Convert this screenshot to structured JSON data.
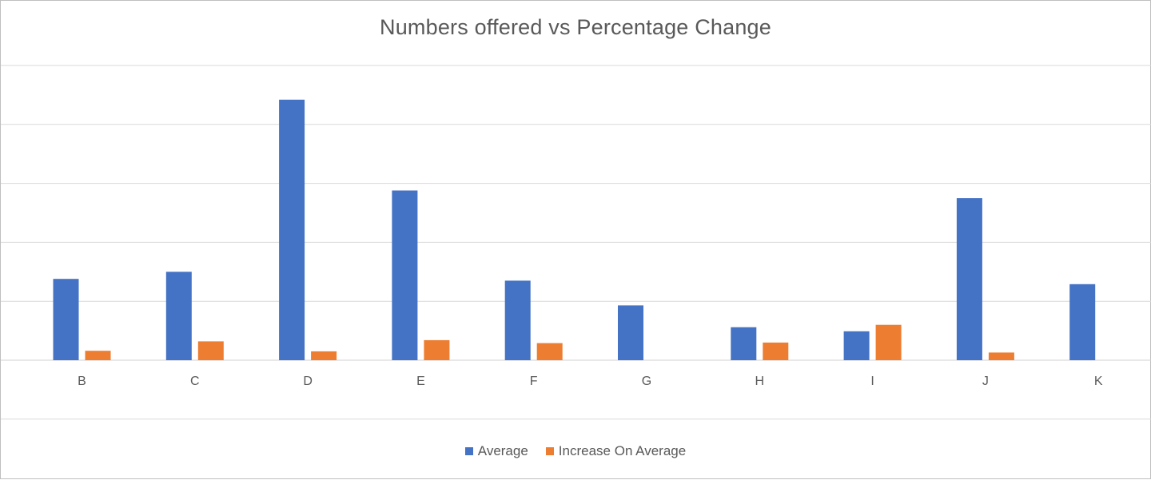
{
  "chart_data": {
    "type": "bar",
    "title": "Numbers offered vs Percentage Change",
    "categories": [
      "B",
      "C",
      "D",
      "E",
      "F",
      "G",
      "H",
      "I",
      "J",
      "K"
    ],
    "series": [
      {
        "name": "Average",
        "color": "#4472C4",
        "values": [
          1.38,
          1.5,
          4.42,
          2.88,
          1.35,
          0.93,
          0.56,
          0.49,
          2.75,
          1.29
        ]
      },
      {
        "name": "Increase On Average",
        "color": "#ED7D31",
        "values": [
          0.16,
          0.32,
          0.15,
          0.34,
          0.29,
          0,
          0.3,
          0.6,
          0.13,
          0
        ]
      }
    ],
    "ylim": [
      -1,
      5
    ],
    "grid": true,
    "y_tick_labels_shown": false,
    "legend_position": "bottom"
  }
}
